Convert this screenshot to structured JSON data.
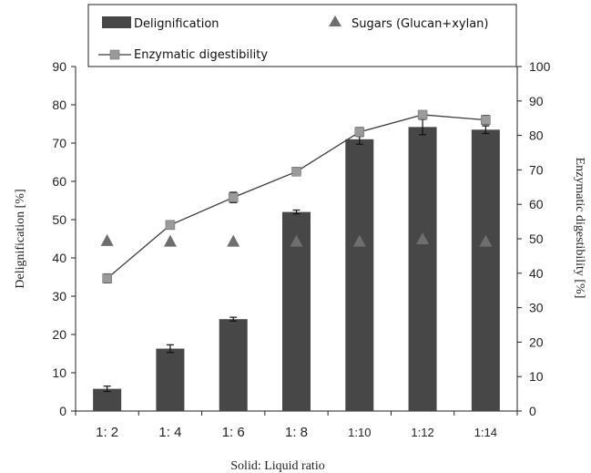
{
  "chart_data": {
    "type": "bar",
    "categories": [
      "1: 2",
      "1: 4",
      "1: 6",
      "1: 8",
      "1:10",
      "1:12",
      "1:14"
    ],
    "xlabel": "Solid: Liquid ratio",
    "ylabel": "Delignification [%]",
    "y2label": "Enzymatic digestibility [%]",
    "ylim": [
      0,
      90
    ],
    "y2lim": [
      0,
      100
    ],
    "yticks": [
      "0",
      "10",
      "20",
      "30",
      "40",
      "50",
      "60",
      "70",
      "80",
      "90"
    ],
    "y2ticks": [
      "0",
      "10",
      "20",
      "30",
      "40",
      "50",
      "60",
      "70",
      "80",
      "90",
      "100"
    ],
    "grid": false,
    "legend_position": "top",
    "colors": {
      "bar": "#474747",
      "sugars": "#6e6e6e",
      "line": "#3a3a3a",
      "marker": "#9a9a9a"
    },
    "series": [
      {
        "name": "Delignification",
        "type": "bar",
        "axis": "left",
        "values": [
          5.8,
          16.3,
          24.0,
          52.0,
          71.0,
          74.2,
          73.5
        ],
        "errors": [
          0.7,
          1.0,
          0.5,
          0.5,
          1.3,
          2.0,
          1.0
        ]
      },
      {
        "name": "Sugars (Glucan+xylan)",
        "type": "scatter",
        "marker": "triangle",
        "axis": "right",
        "values": [
          49.5,
          49.3,
          49.3,
          49.3,
          49.3,
          50.0,
          49.3
        ]
      },
      {
        "name": "Enzymatic digestibility",
        "type": "line",
        "marker": "square",
        "axis": "right",
        "values": [
          38.5,
          54.0,
          62.0,
          69.5,
          81.0,
          86.0,
          84.5
        ],
        "errors": [
          1.3,
          1.2,
          1.5,
          1.0,
          1.3,
          1.0,
          1.3
        ]
      }
    ]
  }
}
